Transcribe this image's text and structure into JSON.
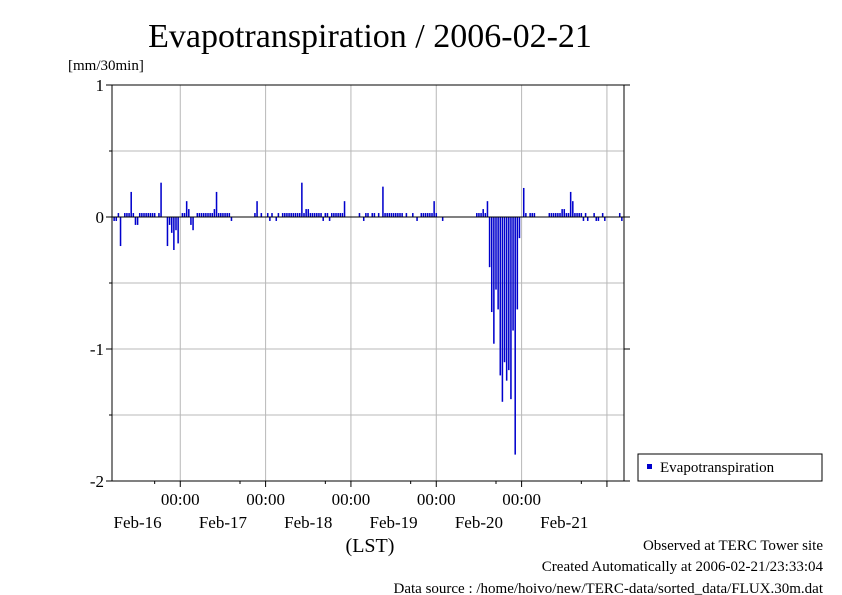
{
  "chart_data": {
    "type": "bar",
    "title": "Evapotranspiration / 2006-02-21",
    "ylabel": "[mm/30min]",
    "xlabel": "(LST)",
    "ylim": [
      -2,
      1
    ],
    "yticks": [
      1,
      0,
      -1,
      -2
    ],
    "xlim_hours": [
      -16,
      104
    ],
    "xticks": [
      {
        "hour": 0,
        "time": "00:00",
        "date": "Feb-16"
      },
      {
        "hour": 20,
        "time": "00:00",
        "date": "Feb-17"
      },
      {
        "hour": 40,
        "time": "00:00",
        "date": "Feb-18"
      },
      {
        "hour": 60,
        "time": "00:00",
        "date": "Feb-19"
      },
      {
        "hour": 80,
        "time": "00:00",
        "date": "Feb-20"
      },
      {
        "hour": 100,
        "time": "",
        "date": "Feb-21"
      }
    ],
    "grid": true,
    "legend_position": "right",
    "series": [
      {
        "name": "Evapotranspiration",
        "color": "#0000cc",
        "points": [
          [
            -15.5,
            -0.03
          ],
          [
            -15,
            -0.03
          ],
          [
            -14.5,
            0.03
          ],
          [
            -14,
            -0.22
          ],
          [
            -13,
            0.03
          ],
          [
            -12.5,
            0.03
          ],
          [
            -12,
            0.03
          ],
          [
            -11.5,
            0.19
          ],
          [
            -11,
            0.03
          ],
          [
            -10.5,
            -0.06
          ],
          [
            -10,
            -0.06
          ],
          [
            -9.5,
            0.03
          ],
          [
            -9,
            0.03
          ],
          [
            -8.5,
            0.03
          ],
          [
            -8,
            0.03
          ],
          [
            -7.5,
            0.03
          ],
          [
            -7,
            0.03
          ],
          [
            -6.5,
            0.03
          ],
          [
            -6,
            0.03
          ],
          [
            -5,
            0.03
          ],
          [
            -4.5,
            0.26
          ],
          [
            -3,
            -0.22
          ],
          [
            -2.5,
            -0.06
          ],
          [
            -2,
            -0.12
          ],
          [
            -1.5,
            -0.25
          ],
          [
            -1,
            -0.1
          ],
          [
            -0.5,
            -0.2
          ],
          [
            0.5,
            0.03
          ],
          [
            1,
            0.03
          ],
          [
            1.5,
            0.12
          ],
          [
            2,
            0.06
          ],
          [
            2.5,
            -0.06
          ],
          [
            3,
            -0.1
          ],
          [
            4,
            0.03
          ],
          [
            4.5,
            0.03
          ],
          [
            5,
            0.03
          ],
          [
            5.5,
            0.03
          ],
          [
            6,
            0.03
          ],
          [
            6.5,
            0.03
          ],
          [
            7,
            0.03
          ],
          [
            7.5,
            0.03
          ],
          [
            8,
            0.06
          ],
          [
            8.5,
            0.19
          ],
          [
            9,
            0.03
          ],
          [
            9.5,
            0.03
          ],
          [
            10,
            0.03
          ],
          [
            10.5,
            0.03
          ],
          [
            11,
            0.03
          ],
          [
            11.5,
            0.03
          ],
          [
            12,
            -0.03
          ],
          [
            17.5,
            0.03
          ],
          [
            18,
            0.12
          ],
          [
            19,
            0.03
          ],
          [
            20.5,
            0.03
          ],
          [
            21,
            -0.03
          ],
          [
            21.5,
            0.03
          ],
          [
            22.5,
            -0.03
          ],
          [
            23,
            0.03
          ],
          [
            24,
            0.03
          ],
          [
            24.5,
            0.03
          ],
          [
            25,
            0.03
          ],
          [
            25.5,
            0.03
          ],
          [
            26,
            0.03
          ],
          [
            26.5,
            0.03
          ],
          [
            27,
            0.03
          ],
          [
            27.5,
            0.03
          ],
          [
            28,
            0.03
          ],
          [
            28.5,
            0.26
          ],
          [
            29,
            0.03
          ],
          [
            29.5,
            0.06
          ],
          [
            30,
            0.06
          ],
          [
            30.5,
            0.03
          ],
          [
            31,
            0.03
          ],
          [
            31.5,
            0.03
          ],
          [
            32,
            0.03
          ],
          [
            32.5,
            0.03
          ],
          [
            33,
            0.03
          ],
          [
            33.5,
            -0.03
          ],
          [
            34,
            0.03
          ],
          [
            34.5,
            0.03
          ],
          [
            35,
            -0.03
          ],
          [
            35.5,
            0.03
          ],
          [
            36,
            0.03
          ],
          [
            36.5,
            0.03
          ],
          [
            37,
            0.03
          ],
          [
            37.5,
            0.03
          ],
          [
            38,
            0.03
          ],
          [
            38.5,
            0.12
          ],
          [
            42,
            0.03
          ],
          [
            43,
            -0.03
          ],
          [
            43.5,
            0.03
          ],
          [
            44,
            0.03
          ],
          [
            45,
            0.03
          ],
          [
            45.5,
            0.03
          ],
          [
            46.5,
            0.03
          ],
          [
            47.5,
            0.23
          ],
          [
            48,
            0.03
          ],
          [
            48.5,
            0.03
          ],
          [
            49,
            0.03
          ],
          [
            49.5,
            0.03
          ],
          [
            50,
            0.03
          ],
          [
            50.5,
            0.03
          ],
          [
            51,
            0.03
          ],
          [
            51.5,
            0.03
          ],
          [
            52,
            0.03
          ],
          [
            53,
            0.03
          ],
          [
            54.5,
            0.03
          ],
          [
            55.5,
            -0.03
          ],
          [
            56.5,
            0.03
          ],
          [
            57,
            0.03
          ],
          [
            57.5,
            0.03
          ],
          [
            58,
            0.03
          ],
          [
            58.5,
            0.03
          ],
          [
            59,
            0.03
          ],
          [
            59.5,
            0.12
          ],
          [
            60,
            0.03
          ],
          [
            61.5,
            -0.03
          ],
          [
            69.5,
            0.03
          ],
          [
            70,
            0.03
          ],
          [
            70.5,
            0.03
          ],
          [
            71,
            0.06
          ],
          [
            71.5,
            0.03
          ],
          [
            72,
            0.12
          ],
          [
            72.5,
            -0.38
          ],
          [
            73,
            -0.72
          ],
          [
            73.5,
            -0.96
          ],
          [
            74,
            -0.55
          ],
          [
            74.5,
            -0.7
          ],
          [
            75,
            -1.2
          ],
          [
            75.5,
            -1.4
          ],
          [
            76,
            -1.1
          ],
          [
            76.5,
            -1.24
          ],
          [
            77,
            -1.16
          ],
          [
            77.5,
            -1.38
          ],
          [
            78,
            -0.86
          ],
          [
            78.5,
            -1.8
          ],
          [
            79,
            -0.7
          ],
          [
            79.5,
            -0.16
          ],
          [
            80.5,
            0.22
          ],
          [
            81,
            0.03
          ],
          [
            82,
            0.03
          ],
          [
            82.5,
            0.03
          ],
          [
            83,
            0.03
          ],
          [
            86.5,
            0.03
          ],
          [
            87,
            0.03
          ],
          [
            87.5,
            0.03
          ],
          [
            88,
            0.03
          ],
          [
            88.5,
            0.03
          ],
          [
            89,
            0.03
          ],
          [
            89.5,
            0.06
          ],
          [
            90,
            0.06
          ],
          [
            90.5,
            0.03
          ],
          [
            91,
            0.03
          ],
          [
            91.5,
            0.19
          ],
          [
            92,
            0.12
          ],
          [
            92.5,
            0.03
          ],
          [
            93,
            0.03
          ],
          [
            93.5,
            0.03
          ],
          [
            94,
            0.03
          ],
          [
            94.5,
            -0.03
          ],
          [
            95,
            0.03
          ],
          [
            95.5,
            -0.03
          ],
          [
            97,
            0.03
          ],
          [
            97.5,
            -0.03
          ],
          [
            98,
            -0.03
          ],
          [
            99,
            0.03
          ],
          [
            99.5,
            -0.03
          ],
          [
            103,
            0.03
          ],
          [
            103.5,
            -0.03
          ]
        ]
      }
    ]
  },
  "footer": {
    "line1": "Observed at TERC Tower site",
    "line2": "Created Automatically at 2006-02-21/23:33:04",
    "line3": "Data source : /home/hoivo/new/TERC-data/sorted_data/FLUX.30m.dat"
  }
}
